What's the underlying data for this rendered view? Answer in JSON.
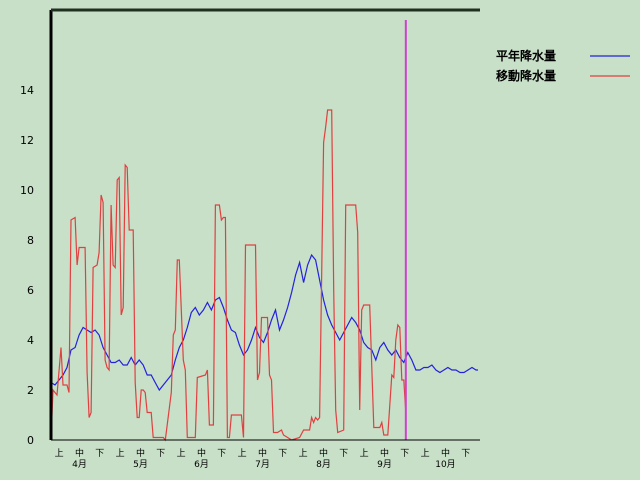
{
  "chart_data": {
    "type": "line",
    "title": "",
    "xlabel": "",
    "ylabel": "",
    "ylim": [
      0,
      14
    ],
    "yticks": [
      0,
      2,
      4,
      6,
      8,
      10,
      12,
      14
    ],
    "grid": false,
    "legend_position": "top-right",
    "x_days": [
      0,
      213
    ],
    "dekad_labels": [
      "上",
      "中",
      "下",
      "上",
      "中",
      "下",
      "上",
      "中",
      "下",
      "上",
      "中",
      "下",
      "上",
      "中",
      "下",
      "上",
      "中",
      "下",
      "上",
      "中",
      "下"
    ],
    "month_labels": [
      "4月",
      "5月",
      "6月",
      "7月",
      "8月",
      "9月",
      "10月"
    ],
    "series": [
      {
        "name": "平年降水量",
        "color": "#2222dd",
        "points": [
          [
            0,
            2.3
          ],
          [
            2,
            2.2
          ],
          [
            4,
            2.4
          ],
          [
            6,
            2.6
          ],
          [
            8,
            2.9
          ],
          [
            10,
            3.6
          ],
          [
            12,
            3.7
          ],
          [
            14,
            4.2
          ],
          [
            16,
            4.5
          ],
          [
            18,
            4.4
          ],
          [
            20,
            4.3
          ],
          [
            22,
            4.4
          ],
          [
            24,
            4.2
          ],
          [
            26,
            3.7
          ],
          [
            28,
            3.4
          ],
          [
            30,
            3.1
          ],
          [
            32,
            3.1
          ],
          [
            34,
            3.2
          ],
          [
            36,
            3.0
          ],
          [
            38,
            3.0
          ],
          [
            40,
            3.3
          ],
          [
            42,
            3.0
          ],
          [
            44,
            3.2
          ],
          [
            46,
            3.0
          ],
          [
            48,
            2.6
          ],
          [
            50,
            2.6
          ],
          [
            52,
            2.3
          ],
          [
            54,
            2.0
          ],
          [
            56,
            2.2
          ],
          [
            58,
            2.4
          ],
          [
            60,
            2.6
          ],
          [
            62,
            3.2
          ],
          [
            64,
            3.7
          ],
          [
            66,
            4.0
          ],
          [
            68,
            4.5
          ],
          [
            70,
            5.1
          ],
          [
            72,
            5.3
          ],
          [
            74,
            5.0
          ],
          [
            76,
            5.2
          ],
          [
            78,
            5.5
          ],
          [
            80,
            5.2
          ],
          [
            82,
            5.6
          ],
          [
            84,
            5.7
          ],
          [
            86,
            5.3
          ],
          [
            88,
            4.8
          ],
          [
            90,
            4.4
          ],
          [
            92,
            4.3
          ],
          [
            94,
            3.8
          ],
          [
            96,
            3.4
          ],
          [
            98,
            3.6
          ],
          [
            100,
            4.0
          ],
          [
            102,
            4.5
          ],
          [
            104,
            4.1
          ],
          [
            106,
            3.9
          ],
          [
            108,
            4.3
          ],
          [
            110,
            4.8
          ],
          [
            112,
            5.2
          ],
          [
            114,
            4.4
          ],
          [
            116,
            4.8
          ],
          [
            118,
            5.3
          ],
          [
            120,
            5.9
          ],
          [
            122,
            6.6
          ],
          [
            124,
            7.1
          ],
          [
            126,
            6.3
          ],
          [
            128,
            7.0
          ],
          [
            130,
            7.4
          ],
          [
            132,
            7.2
          ],
          [
            134,
            6.4
          ],
          [
            136,
            5.6
          ],
          [
            138,
            5.0
          ],
          [
            140,
            4.6
          ],
          [
            142,
            4.3
          ],
          [
            144,
            4.0
          ],
          [
            146,
            4.3
          ],
          [
            148,
            4.6
          ],
          [
            150,
            4.9
          ],
          [
            152,
            4.7
          ],
          [
            154,
            4.4
          ],
          [
            156,
            3.9
          ],
          [
            158,
            3.7
          ],
          [
            160,
            3.6
          ],
          [
            162,
            3.2
          ],
          [
            164,
            3.7
          ],
          [
            166,
            3.9
          ],
          [
            168,
            3.6
          ],
          [
            170,
            3.4
          ],
          [
            172,
            3.6
          ],
          [
            174,
            3.3
          ],
          [
            176,
            3.1
          ],
          [
            178,
            3.5
          ],
          [
            180,
            3.2
          ],
          [
            182,
            2.8
          ],
          [
            184,
            2.8
          ],
          [
            186,
            2.9
          ],
          [
            188,
            2.9
          ],
          [
            190,
            3.0
          ],
          [
            192,
            2.8
          ],
          [
            194,
            2.7
          ],
          [
            196,
            2.8
          ],
          [
            198,
            2.9
          ],
          [
            200,
            2.8
          ],
          [
            202,
            2.8
          ],
          [
            204,
            2.7
          ],
          [
            206,
            2.7
          ],
          [
            208,
            2.8
          ],
          [
            210,
            2.9
          ],
          [
            212,
            2.8
          ],
          [
            213,
            2.8
          ]
        ]
      },
      {
        "name": "移動降水量",
        "color": "#e04040",
        "points": [
          [
            0,
            0
          ],
          [
            1,
            2.0
          ],
          [
            3,
            1.8
          ],
          [
            5,
            3.7
          ],
          [
            6,
            2.2
          ],
          [
            8,
            2.2
          ],
          [
            9,
            1.9
          ],
          [
            10,
            8.8
          ],
          [
            12,
            8.9
          ],
          [
            13,
            7.0
          ],
          [
            14,
            7.7
          ],
          [
            17,
            7.7
          ],
          [
            18,
            2.7
          ],
          [
            19,
            0.9
          ],
          [
            20,
            1.1
          ],
          [
            21,
            6.9
          ],
          [
            23,
            7.0
          ],
          [
            24,
            7.5
          ],
          [
            25,
            9.8
          ],
          [
            26,
            9.5
          ],
          [
            27,
            3.2
          ],
          [
            28,
            2.9
          ],
          [
            29,
            2.8
          ],
          [
            30,
            9.4
          ],
          [
            31,
            7.0
          ],
          [
            32,
            6.9
          ],
          [
            33,
            10.4
          ],
          [
            34,
            10.5
          ],
          [
            35,
            5.0
          ],
          [
            36,
            5.3
          ],
          [
            37,
            11.0
          ],
          [
            38,
            10.9
          ],
          [
            39,
            8.4
          ],
          [
            41,
            8.4
          ],
          [
            42,
            2.3
          ],
          [
            43,
            0.9
          ],
          [
            44,
            0.9
          ],
          [
            45,
            2.0
          ],
          [
            46,
            2.0
          ],
          [
            47,
            1.9
          ],
          [
            48,
            1.1
          ],
          [
            50,
            1.1
          ],
          [
            51,
            0.1
          ],
          [
            56,
            0.1
          ],
          [
            57,
            0.0
          ],
          [
            60,
            1.9
          ],
          [
            61,
            4.2
          ],
          [
            62,
            4.4
          ],
          [
            63,
            7.2
          ],
          [
            64,
            7.2
          ],
          [
            65,
            5.2
          ],
          [
            66,
            3.2
          ],
          [
            67,
            2.8
          ],
          [
            68,
            0.1
          ],
          [
            72,
            0.1
          ],
          [
            73,
            2.5
          ],
          [
            77,
            2.6
          ],
          [
            78,
            2.8
          ],
          [
            79,
            0.6
          ],
          [
            81,
            0.6
          ],
          [
            82,
            9.4
          ],
          [
            84,
            9.4
          ],
          [
            85,
            8.8
          ],
          [
            86,
            8.9
          ],
          [
            87,
            8.9
          ],
          [
            88,
            0.1
          ],
          [
            89,
            0.1
          ],
          [
            90,
            1.0
          ],
          [
            95,
            1.0
          ],
          [
            96,
            0.1
          ],
          [
            97,
            7.8
          ],
          [
            102,
            7.8
          ],
          [
            103,
            2.4
          ],
          [
            104,
            2.7
          ],
          [
            105,
            4.9
          ],
          [
            108,
            4.9
          ],
          [
            109,
            2.6
          ],
          [
            110,
            2.4
          ],
          [
            111,
            0.3
          ],
          [
            113,
            0.3
          ],
          [
            115,
            0.4
          ],
          [
            116,
            0.2
          ],
          [
            118,
            0.1
          ],
          [
            120,
            0.0
          ],
          [
            124,
            0.1
          ],
          [
            126,
            0.4
          ],
          [
            129,
            0.4
          ],
          [
            130,
            0.9
          ],
          [
            131,
            0.7
          ],
          [
            132,
            0.9
          ],
          [
            133,
            0.8
          ],
          [
            134,
            0.9
          ],
          [
            136,
            11.9
          ],
          [
            137,
            12.5
          ],
          [
            138,
            13.2
          ],
          [
            140,
            13.2
          ],
          [
            141,
            6.0
          ],
          [
            142,
            1.2
          ],
          [
            143,
            0.3
          ],
          [
            146,
            0.4
          ],
          [
            147,
            9.4
          ],
          [
            152,
            9.4
          ],
          [
            153,
            8.3
          ],
          [
            154,
            1.2
          ],
          [
            155,
            5.2
          ],
          [
            156,
            5.4
          ],
          [
            159,
            5.4
          ],
          [
            160,
            2.9
          ],
          [
            161,
            0.5
          ],
          [
            164,
            0.5
          ],
          [
            165,
            0.7
          ],
          [
            166,
            0.2
          ],
          [
            168,
            0.2
          ],
          [
            170,
            2.6
          ],
          [
            171,
            2.5
          ],
          [
            172,
            4.0
          ],
          [
            173,
            4.6
          ],
          [
            174,
            4.5
          ],
          [
            175,
            2.4
          ],
          [
            176,
            2.4
          ],
          [
            177,
            1.1
          ]
        ]
      }
    ],
    "marker_line": {
      "x_day": 177,
      "color": "#cc44cc"
    }
  }
}
